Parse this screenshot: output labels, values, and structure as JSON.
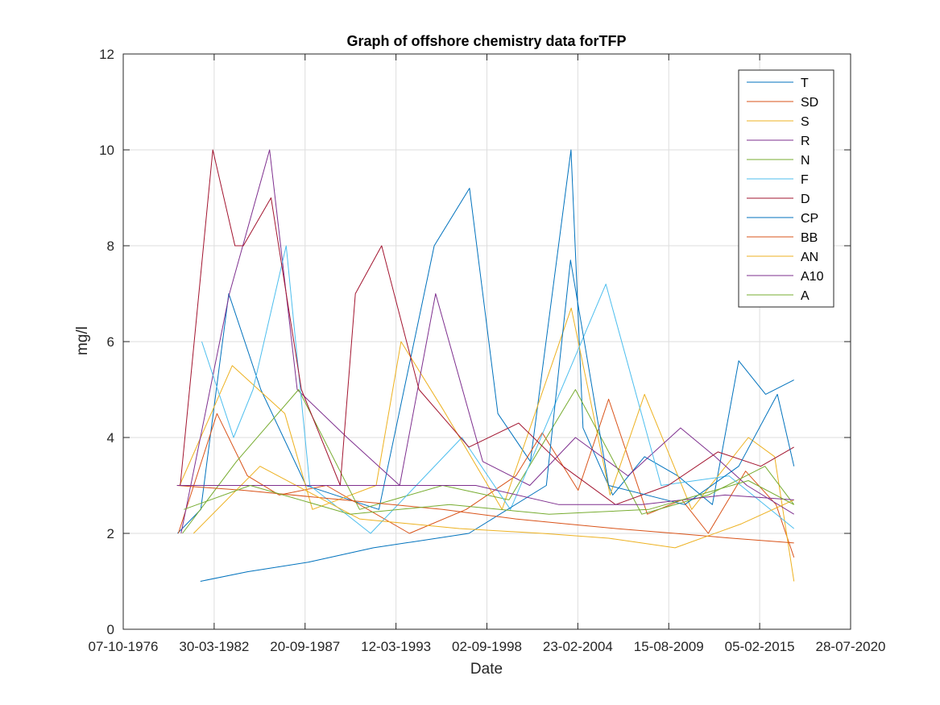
{
  "chart_data": {
    "type": "line",
    "title": "Graph of offshore chemistry data forTFP",
    "xlabel": "Date",
    "ylabel": "mg/l",
    "xlim": [
      "1976-10-07",
      "2020-07-28"
    ],
    "ylim": [
      0,
      12
    ],
    "x_ticks": [
      "07-10-1976",
      "30-03-1982",
      "20-09-1987",
      "12-03-1993",
      "02-09-1998",
      "23-02-2004",
      "15-08-2009",
      "05-02-2015",
      "28-07-2020"
    ],
    "y_ticks": [
      0,
      2,
      4,
      6,
      8,
      10,
      12
    ],
    "grid": true,
    "legend_position": "top-right",
    "series": [
      {
        "name": "T",
        "color": "#0072BD",
        "x": [
          "1980-01-15",
          "1981-06-10",
          "1983-02-15",
          "1985-01-20",
          "1987-10-10",
          "1992-03-01",
          "1995-07-01",
          "1997-08-15",
          "1999-05-01",
          "2001-04-15",
          "2003-09-25",
          "2004-06-15",
          "2006-04-01",
          "2008-03-01",
          "2010-03-01",
          "2012-04-01",
          "2013-11-01",
          "2015-06-15",
          "2017-03-01"
        ],
        "y": [
          2,
          2.5,
          7,
          5,
          3,
          2.5,
          8,
          9.2,
          4.5,
          3.5,
          10,
          4.2,
          2.8,
          3.6,
          3.2,
          2.6,
          5.6,
          4.9,
          5.2
        ]
      },
      {
        "name": "SD",
        "color": "#D95319",
        "x": [
          "1980-02-01",
          "1982-06-01",
          "1984-04-01",
          "1986-03-01",
          "1989-01-01",
          "1994-01-01",
          "1997-06-01",
          "2000-06-01",
          "2002-01-01",
          "2004-03-01",
          "2006-01-01",
          "2008-05-01",
          "2010-06-01",
          "2012-01-01",
          "2014-04-01",
          "2016-02-01",
          "2017-03-01"
        ],
        "y": [
          2,
          4.5,
          3.2,
          2.8,
          3,
          2,
          2.5,
          3.2,
          4.1,
          2.9,
          4.8,
          2.4,
          2.7,
          2,
          3.3,
          2.6,
          1.5
        ]
      },
      {
        "name": "S",
        "color": "#EDB120",
        "x": [
          "1980-03-01",
          "1983-05-01",
          "1986-07-01",
          "1988-03-01",
          "1992-01-01",
          "1993-07-01",
          "1996-01-01",
          "1999-08-01",
          "2003-10-01",
          "2006-02-01",
          "2008-03-01",
          "2011-01-01",
          "2014-06-01",
          "2016-01-01",
          "2017-03-01"
        ],
        "y": [
          3,
          5.5,
          4.5,
          2.5,
          3,
          6,
          4.6,
          2.5,
          6.7,
          2.8,
          4.9,
          2.5,
          4,
          3.6,
          1
        ]
      },
      {
        "name": "R",
        "color": "#7E2F8E",
        "x": [
          "1980-04-01",
          "1983-03-01",
          "1985-08-01",
          "1987-04-01",
          "1990-04-01",
          "1993-06-01",
          "1995-08-01",
          "1998-06-01",
          "2001-04-01",
          "2004-01-01",
          "2007-03-01",
          "2010-05-01",
          "2012-06-01",
          "2014-05-01",
          "2017-03-01"
        ],
        "y": [
          2,
          7,
          10,
          5,
          4,
          3,
          7,
          3.5,
          3,
          4,
          3.2,
          4.2,
          3.6,
          3,
          2.4
        ]
      },
      {
        "name": "N",
        "color": "#77AC30",
        "x": [
          "1980-05-01",
          "1983-08-01",
          "1987-05-01",
          "1991-01-01",
          "1996-01-01",
          "2000-01-01",
          "2004-01-01",
          "2008-01-01",
          "2012-01-01",
          "2015-06-01",
          "2017-03-01"
        ],
        "y": [
          2,
          3.5,
          5,
          2.5,
          3,
          2.7,
          5,
          2.4,
          2.8,
          3.4,
          2.6
        ]
      },
      {
        "name": "F",
        "color": "#4DBEEE",
        "x": [
          "1981-07-01",
          "1983-06-01",
          "1984-08-01",
          "1986-08-01",
          "1988-01-01",
          "1991-09-01",
          "1997-03-01",
          "2000-02-01",
          "2005-11-01",
          "2009-03-01",
          "2013-04-01",
          "2017-03-01"
        ],
        "y": [
          6,
          4,
          5,
          8,
          3,
          2,
          4,
          2.5,
          7.2,
          3,
          3.2,
          2.1
        ]
      },
      {
        "name": "D",
        "color": "#A2142F",
        "x": [
          "1980-03-15",
          "1982-03-01",
          "1983-07-01",
          "1984-01-01",
          "1985-09-01",
          "1987-07-01",
          "1989-11-01",
          "1990-10-01",
          "1992-05-01",
          "1994-08-01",
          "1997-08-01",
          "2000-08-01",
          "2003-04-01",
          "2006-06-01",
          "2009-08-01",
          "2012-08-01",
          "2015-03-01",
          "2017-03-01"
        ],
        "y": [
          3,
          10,
          8,
          8,
          9,
          5,
          3,
          7,
          8,
          5,
          3.8,
          4.3,
          3.4,
          2.6,
          3,
          3.7,
          3.4,
          3.8
        ]
      },
      {
        "name": "CP",
        "color": "#0072BD",
        "x": [
          "1981-06-01",
          "1984-04-01",
          "1987-12-01",
          "1991-11-01",
          "1997-08-01",
          "2002-04-01",
          "2003-09-15",
          "2006-01-01",
          "2010-08-01",
          "2013-11-01",
          "2016-03-01",
          "2017-03-01"
        ],
        "y": [
          1,
          1.2,
          1.4,
          1.7,
          2,
          3,
          7.7,
          3,
          2.6,
          3.4,
          4.9,
          3.4
        ]
      },
      {
        "name": "BB",
        "color": "#D95319",
        "x": [
          "1980-01-01",
          "1984-01-01",
          "1990-01-01",
          "1996-01-01",
          "2000-06-01",
          "2003-06-01",
          "2006-06-01",
          "2010-01-01",
          "2013-06-01",
          "2017-03-01"
        ],
        "y": [
          3,
          2.9,
          2.7,
          2.5,
          2.3,
          2.2,
          2.1,
          2,
          1.9,
          1.8
        ]
      },
      {
        "name": "AN",
        "color": "#EDB120",
        "x": [
          "1981-01-01",
          "1985-01-01",
          "1991-01-01",
          "1997-01-01",
          "2002-01-01",
          "2006-01-01",
          "2010-01-01",
          "2014-01-01",
          "2017-03-01"
        ],
        "y": [
          2,
          3.4,
          2.3,
          2.1,
          2,
          1.9,
          1.7,
          2.2,
          2.7
        ]
      },
      {
        "name": "A10",
        "color": "#7E2F8E",
        "x": [
          "1980-01-01",
          "1983-01-01",
          "1988-01-01",
          "1993-01-01",
          "1998-01-01",
          "2003-01-01",
          "2008-01-01",
          "2013-01-01",
          "2017-03-01"
        ],
        "y": [
          3,
          3,
          3,
          3,
          3,
          2.6,
          2.6,
          2.8,
          2.7
        ]
      },
      {
        "name": "A",
        "color": "#77AC30",
        "x": [
          "1980-06-01",
          "1984-06-01",
          "1990-06-01",
          "1996-06-01",
          "2002-06-01",
          "2008-06-01",
          "2014-06-01",
          "2017-03-01"
        ],
        "y": [
          2.5,
          3,
          2.4,
          2.6,
          2.4,
          2.5,
          3.1,
          2.6
        ]
      }
    ]
  }
}
